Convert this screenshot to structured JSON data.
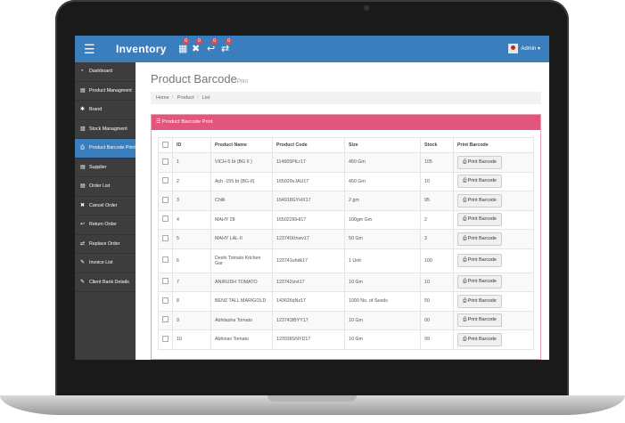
{
  "app": {
    "title": "Inventory",
    "menu_icon": "hamburger-icon"
  },
  "topbar": {
    "icons": [
      {
        "name": "calculator-icon",
        "glyph": "▦",
        "badge": "0"
      },
      {
        "name": "cancel-icon",
        "glyph": "✖",
        "badge": "0"
      },
      {
        "name": "reply-icon",
        "glyph": "↩",
        "badge": "0"
      },
      {
        "name": "retweet-icon",
        "glyph": "⇄",
        "badge": "0"
      }
    ],
    "user": "Admin ▾"
  },
  "sidebar": {
    "items": [
      {
        "label": "Dashboard",
        "icon": "dashboard-icon",
        "glyph": "◔"
      },
      {
        "label": "Product Managment",
        "icon": "list-icon",
        "glyph": "▤"
      },
      {
        "label": "Brand",
        "icon": "gear-icon",
        "glyph": "✱"
      },
      {
        "label": "Stock Managment",
        "icon": "chart-icon",
        "glyph": "▥"
      },
      {
        "label": "Product Barcode Print",
        "icon": "print-icon",
        "glyph": "⎙",
        "active": true
      },
      {
        "label": "Supplier",
        "icon": "list-icon",
        "glyph": "▤"
      },
      {
        "label": "Order List",
        "icon": "list-icon",
        "glyph": "▤"
      },
      {
        "label": "Cancel Order",
        "icon": "cancel-icon",
        "glyph": "✖"
      },
      {
        "label": "Return Order",
        "icon": "reply-icon",
        "glyph": "↩"
      },
      {
        "label": "Replace Order",
        "icon": "retweet-icon",
        "glyph": "⇄"
      },
      {
        "label": "Invoice List",
        "icon": "edit-icon",
        "glyph": "✎"
      },
      {
        "label": "Client Bank Details",
        "icon": "edit-icon",
        "glyph": "✎"
      }
    ]
  },
  "page": {
    "title": "Product Barcode",
    "title_small": "Print",
    "breadcrumb": [
      "Home",
      "Product",
      "List"
    ],
    "panel_title": "☰ Product Barcode Print"
  },
  "table": {
    "headers": [
      "ID",
      "Product Name",
      "Product Code",
      "Size",
      "Stock",
      "Print Barcode"
    ],
    "button_label": "⎙ Print Barcode",
    "rows": [
      {
        "id": "1",
        "name": "VICH-5 bt (BG II )",
        "code": "114605PtLr17",
        "size": "450 Gm",
        "stock": "105"
      },
      {
        "id": "2",
        "name": "Ach -155 bt (BG-II)",
        "code": "165020vJAU17",
        "size": "450 Gm",
        "stock": "10"
      },
      {
        "id": "3",
        "name": "Chilli",
        "code": "164918GYHX17",
        "size": "2 gm",
        "stock": "95"
      },
      {
        "id": "4",
        "name": "MAHY 28",
        "code": "165022I6HI17",
        "size": "100gm Gm",
        "stock": "2"
      },
      {
        "id": "5",
        "name": "MAHY LAL-II",
        "code": "123740Unwv17",
        "size": "50 Gm",
        "stock": "3"
      },
      {
        "id": "6",
        "name": "Deshi Tomato Kitchen Gar",
        "code": "123741uhdk17",
        "size": "1 Unit",
        "stock": "100"
      },
      {
        "id": "7",
        "name": "ANIRUDH TOMATO",
        "code": "123742izvt17",
        "size": "10 Gm",
        "stock": "10"
      },
      {
        "id": "8",
        "name": "BENZ TALL MARIGOLD",
        "code": "143626qNz17",
        "size": "1000 No. of Seeds",
        "stock": "50"
      },
      {
        "id": "9",
        "name": "Abhilasha Tomato",
        "code": "123743IBYY17",
        "size": "10 Gm",
        "stock": "00"
      },
      {
        "id": "10",
        "name": "Abhinav Tomato",
        "code": "123938SNYD17",
        "size": "10 Gm",
        "stock": "99"
      }
    ]
  },
  "colors": {
    "topbar": "#3a7ebe",
    "sidebar": "#3d3d3d",
    "panel_header": "#e2567c",
    "badge": "#e04a4a"
  }
}
